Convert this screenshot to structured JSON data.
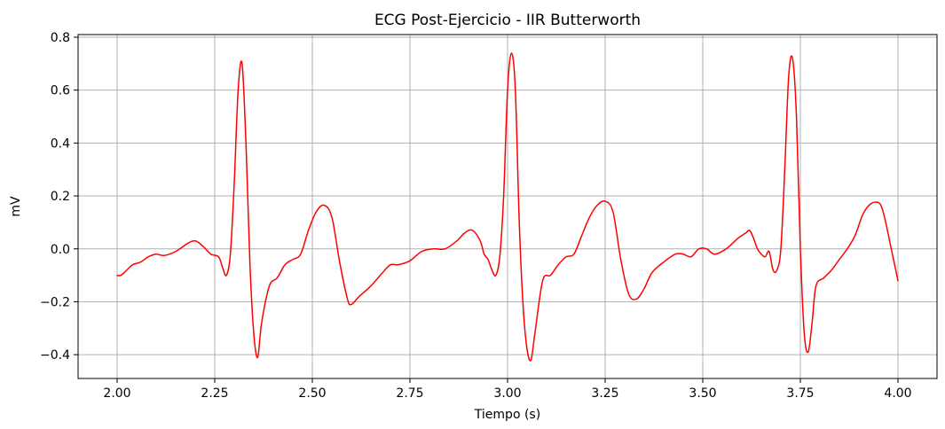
{
  "chart_data": {
    "type": "line",
    "title": "ECG Post-Ejercicio - IIR Butterworth",
    "xlabel": "Tiempo (s)",
    "ylabel": "mV",
    "xlim": [
      1.9,
      4.1
    ],
    "ylim": [
      -0.49,
      0.81
    ],
    "x_ticks": [
      2.0,
      2.25,
      2.5,
      2.75,
      3.0,
      3.25,
      3.5,
      3.75,
      4.0
    ],
    "x_tick_labels": [
      "2.00",
      "2.25",
      "2.50",
      "2.75",
      "3.00",
      "3.25",
      "3.50",
      "3.75",
      "4.00"
    ],
    "y_ticks": [
      -0.4,
      -0.2,
      0.0,
      0.2,
      0.4,
      0.6,
      0.8
    ],
    "y_tick_labels": [
      "−0.4",
      "−0.2",
      "0.0",
      "0.2",
      "0.4",
      "0.6",
      "0.8"
    ],
    "grid": true,
    "series": [
      {
        "color": "#ff0000",
        "x": [
          2.0,
          2.01,
          2.025,
          2.04,
          2.06,
          2.08,
          2.1,
          2.12,
          2.15,
          2.18,
          2.2,
          2.22,
          2.24,
          2.26,
          2.27,
          2.28,
          2.29,
          2.3,
          2.31,
          2.32,
          2.33,
          2.34,
          2.35,
          2.36,
          2.37,
          2.39,
          2.41,
          2.43,
          2.45,
          2.47,
          2.49,
          2.51,
          2.53,
          2.55,
          2.57,
          2.59,
          2.6,
          2.62,
          2.65,
          2.68,
          2.7,
          2.72,
          2.75,
          2.78,
          2.81,
          2.84,
          2.87,
          2.89,
          2.91,
          2.93,
          2.94,
          2.95,
          2.96,
          2.97,
          2.98,
          2.99,
          3.0,
          3.01,
          3.02,
          3.03,
          3.04,
          3.05,
          3.06,
          3.07,
          3.09,
          3.11,
          3.13,
          3.15,
          3.17,
          3.19,
          3.21,
          3.23,
          3.25,
          3.27,
          3.29,
          3.31,
          3.33,
          3.35,
          3.37,
          3.4,
          3.43,
          3.45,
          3.47,
          3.49,
          3.51,
          3.53,
          3.56,
          3.59,
          3.61,
          3.62,
          3.63,
          3.64,
          3.65,
          3.66,
          3.67,
          3.68,
          3.69,
          3.7,
          3.71,
          3.72,
          3.73,
          3.74,
          3.75,
          3.76,
          3.77,
          3.78,
          3.79,
          3.81,
          3.83,
          3.85,
          3.87,
          3.89,
          3.91,
          3.93,
          3.95,
          3.96,
          3.97,
          3.98,
          3.99,
          4.0
        ],
        "y": [
          -0.1,
          -0.1,
          -0.08,
          -0.06,
          -0.05,
          -0.03,
          -0.02,
          -0.025,
          -0.01,
          0.02,
          0.03,
          0.01,
          -0.02,
          -0.03,
          -0.07,
          -0.1,
          -0.02,
          0.25,
          0.6,
          0.7,
          0.4,
          -0.05,
          -0.32,
          -0.41,
          -0.28,
          -0.14,
          -0.11,
          -0.06,
          -0.04,
          -0.02,
          0.07,
          0.14,
          0.165,
          0.12,
          -0.05,
          -0.19,
          -0.21,
          -0.18,
          -0.14,
          -0.09,
          -0.06,
          -0.06,
          -0.045,
          -0.01,
          0.0,
          0.0,
          0.03,
          0.06,
          0.07,
          0.03,
          -0.02,
          -0.04,
          -0.08,
          -0.1,
          -0.03,
          0.2,
          0.6,
          0.74,
          0.6,
          0.1,
          -0.22,
          -0.38,
          -0.42,
          -0.32,
          -0.12,
          -0.1,
          -0.06,
          -0.03,
          -0.02,
          0.05,
          0.12,
          0.165,
          0.18,
          0.14,
          -0.04,
          -0.17,
          -0.19,
          -0.15,
          -0.09,
          -0.05,
          -0.02,
          -0.02,
          -0.03,
          0.0,
          0.0,
          -0.02,
          0.0,
          0.04,
          0.06,
          0.07,
          0.04,
          0.0,
          -0.02,
          -0.03,
          -0.01,
          -0.08,
          -0.08,
          0.0,
          0.3,
          0.65,
          0.72,
          0.5,
          0.0,
          -0.32,
          -0.39,
          -0.28,
          -0.14,
          -0.11,
          -0.08,
          -0.04,
          0.0,
          0.05,
          0.13,
          0.17,
          0.175,
          0.15,
          0.09,
          0.02,
          -0.05,
          -0.12
        ]
      }
    ]
  }
}
